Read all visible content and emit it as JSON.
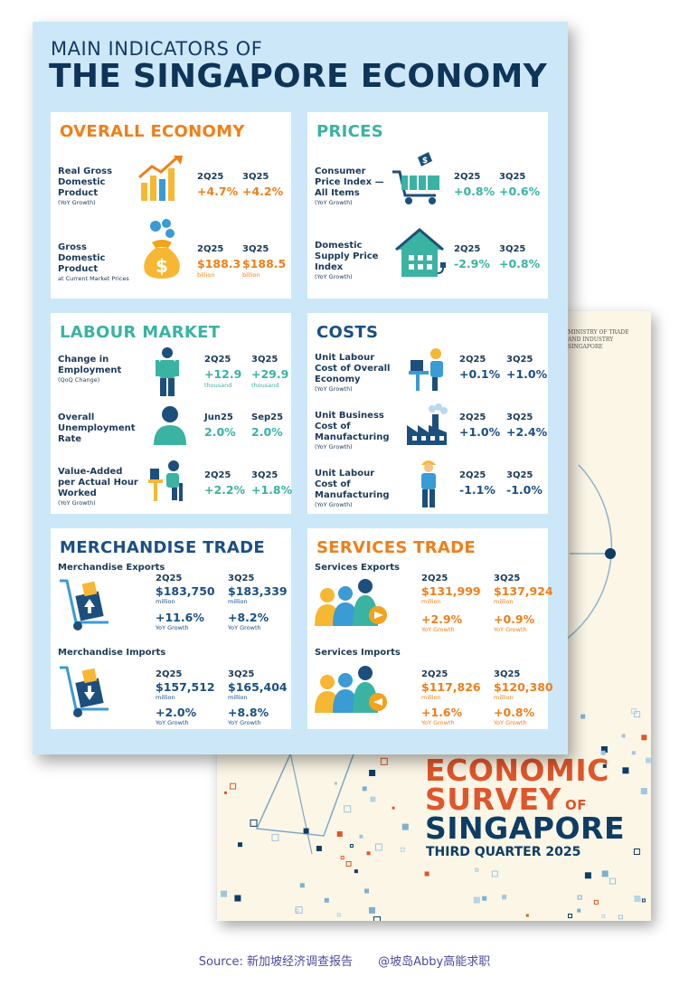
{
  "header": {
    "subtitle": "MAIN INDICATORS OF",
    "title": "THE SINGAPORE ECONOMY"
  },
  "colors": {
    "orange": "#ef7f1a",
    "teal": "#3ab3a3",
    "navy": "#1a4f86",
    "background": "#cce8f8"
  },
  "overall": {
    "title": "OVERALL ECONOMY",
    "gdp": {
      "label": "Real Gross Domestic Product",
      "note": "(YoY Growth)",
      "icon": "bar-chart-icon",
      "p1": "2Q25",
      "v1": "+4.7%",
      "p2": "3Q25",
      "v2": "+4.2%"
    },
    "nominal": {
      "label": "Gross Domestic Product",
      "note": "at Current Market Prices",
      "icon": "money-bag-icon",
      "p1": "2Q25",
      "v1": "$188.3",
      "u1": "billion",
      "p2": "3Q25",
      "v2": "$188.5",
      "u2": "billion"
    }
  },
  "prices": {
    "title": "PRICES",
    "cpi": {
      "label": "Consumer Price Index — All Items",
      "note": "(YoY Growth)",
      "icon": "shopping-cart-icon",
      "p1": "2Q25",
      "v1": "+0.8%",
      "p2": "3Q25",
      "v2": "+0.6%"
    },
    "dspi": {
      "label": "Domestic Supply Price Index",
      "note": "(YoY Growth)",
      "icon": "house-plug-icon",
      "p1": "2Q25",
      "v1": "-2.9%",
      "p2": "3Q25",
      "v2": "+0.8%"
    }
  },
  "labour": {
    "title": "LABOUR MARKET",
    "employment": {
      "label": "Change in Employment",
      "note": "(QoQ Change)",
      "icon": "worker-icon",
      "p1": "2Q25",
      "v1": "+12.9",
      "u1": "thousand",
      "p2": "3Q25",
      "v2": "+29.9",
      "u2": "thousand"
    },
    "unemployment": {
      "label": "Overall Unemployment Rate",
      "icon": "person-icon",
      "p1": "Jun25",
      "v1": "2.0%",
      "p2": "Sep25",
      "v2": "2.0%"
    },
    "productivity": {
      "label": "Value-Added per Actual Hour Worked",
      "note": "(YoY Growth)",
      "icon": "desk-worker-icon",
      "p1": "2Q25",
      "v1": "+2.2%",
      "p2": "3Q25",
      "v2": "+1.8%"
    }
  },
  "costs": {
    "title": "COSTS",
    "ulc_overall": {
      "label": "Unit Labour Cost of Overall Economy",
      "note": "(YoY Growth)",
      "icon": "office-worker-icon",
      "p1": "2Q25",
      "v1": "+0.1%",
      "p2": "3Q25",
      "v2": "+1.0%"
    },
    "ubc": {
      "label": "Unit Business Cost of Manufacturing",
      "note": "(YoY Growth)",
      "icon": "factory-icon",
      "p1": "2Q25",
      "v1": "+1.0%",
      "p2": "3Q25",
      "v2": "+2.4%"
    },
    "ulc_mfg": {
      "label": "Unit Labour Cost of Manufacturing",
      "note": "(YoY Growth)",
      "icon": "factory-worker-icon",
      "p1": "2Q25",
      "v1": "-1.1%",
      "p2": "3Q25",
      "v2": "-1.0%"
    }
  },
  "merch": {
    "title": "MERCHANDISE TRADE",
    "exports": {
      "label": "Merchandise Exports",
      "icon": "hand-truck-up-icon",
      "p1": "2Q25",
      "v1": "$183,750",
      "u1": "million",
      "g1": "+11.6%",
      "gn1": "YoY Growth",
      "p2": "3Q25",
      "v2": "$183,339",
      "u2": "million",
      "g2": "+8.2%",
      "gn2": "YoY Growth"
    },
    "imports": {
      "label": "Merchandise Imports",
      "icon": "hand-truck-down-icon",
      "p1": "2Q25",
      "v1": "$157,512",
      "u1": "million",
      "g1": "+2.0%",
      "gn1": "YoY Growth",
      "p2": "3Q25",
      "v2": "$165,404",
      "u2": "million",
      "g2": "+8.8%",
      "gn2": "YoY Growth"
    }
  },
  "services": {
    "title": "SERVICES TRADE",
    "exports": {
      "label": "Services Exports",
      "icon": "people-group-out-icon",
      "p1": "2Q25",
      "v1": "$131,999",
      "u1": "million",
      "g1": "+2.9%",
      "gn1": "YoY Growth",
      "p2": "3Q25",
      "v2": "$137,924",
      "u2": "million",
      "g2": "+0.9%",
      "gn2": "YoY Growth"
    },
    "imports": {
      "label": "Services Imports",
      "icon": "people-group-in-icon",
      "p1": "2Q25",
      "v1": "$117,826",
      "u1": "million",
      "g1": "+1.6%",
      "gn1": "YoY Growth",
      "p2": "3Q25",
      "v2": "$120,380",
      "u2": "million",
      "g2": "+0.8%",
      "gn2": "YoY Growth"
    }
  },
  "cover": {
    "ministry_l1": "MINISTRY OF TRADE",
    "ministry_l2": "AND INDUSTRY",
    "ministry_l3": "SINGAPORE",
    "line1": "ECONOMIC",
    "line2": "SURVEY",
    "of": "OF",
    "line3": "SINGAPORE",
    "line4": "THIRD QUARTER 2025"
  },
  "footer": {
    "source": "Source: 新加坡经济调查报告",
    "credit": "@坡岛Abby高能求职"
  }
}
